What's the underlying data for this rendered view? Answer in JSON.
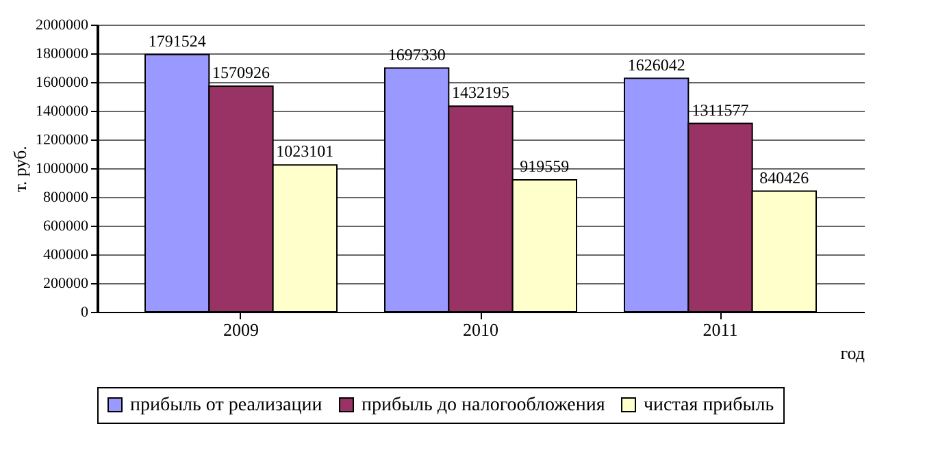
{
  "chart_data": {
    "type": "bar",
    "xlabel": "год",
    "ylabel": "т. руб.",
    "categories": [
      "2009",
      "2010",
      "2011"
    ],
    "series": [
      {
        "name": "прибыль от реализации",
        "color": "#9999ff",
        "values": [
          1791524,
          1697330,
          1626042
        ]
      },
      {
        "name": "прибыль до налогообложения",
        "color": "#993366",
        "values": [
          1570926,
          1432195,
          1311577
        ]
      },
      {
        "name": "чистая прибыль",
        "color": "#ffffcc",
        "values": [
          1023101,
          919559,
          840426
        ]
      }
    ],
    "ylim": [
      0,
      2000000
    ],
    "yticks": [
      0,
      200000,
      400000,
      600000,
      800000,
      1000000,
      1200000,
      1400000,
      1600000,
      1800000,
      2000000
    ],
    "grid": "y",
    "legend": "bottom",
    "data_labels": true
  }
}
